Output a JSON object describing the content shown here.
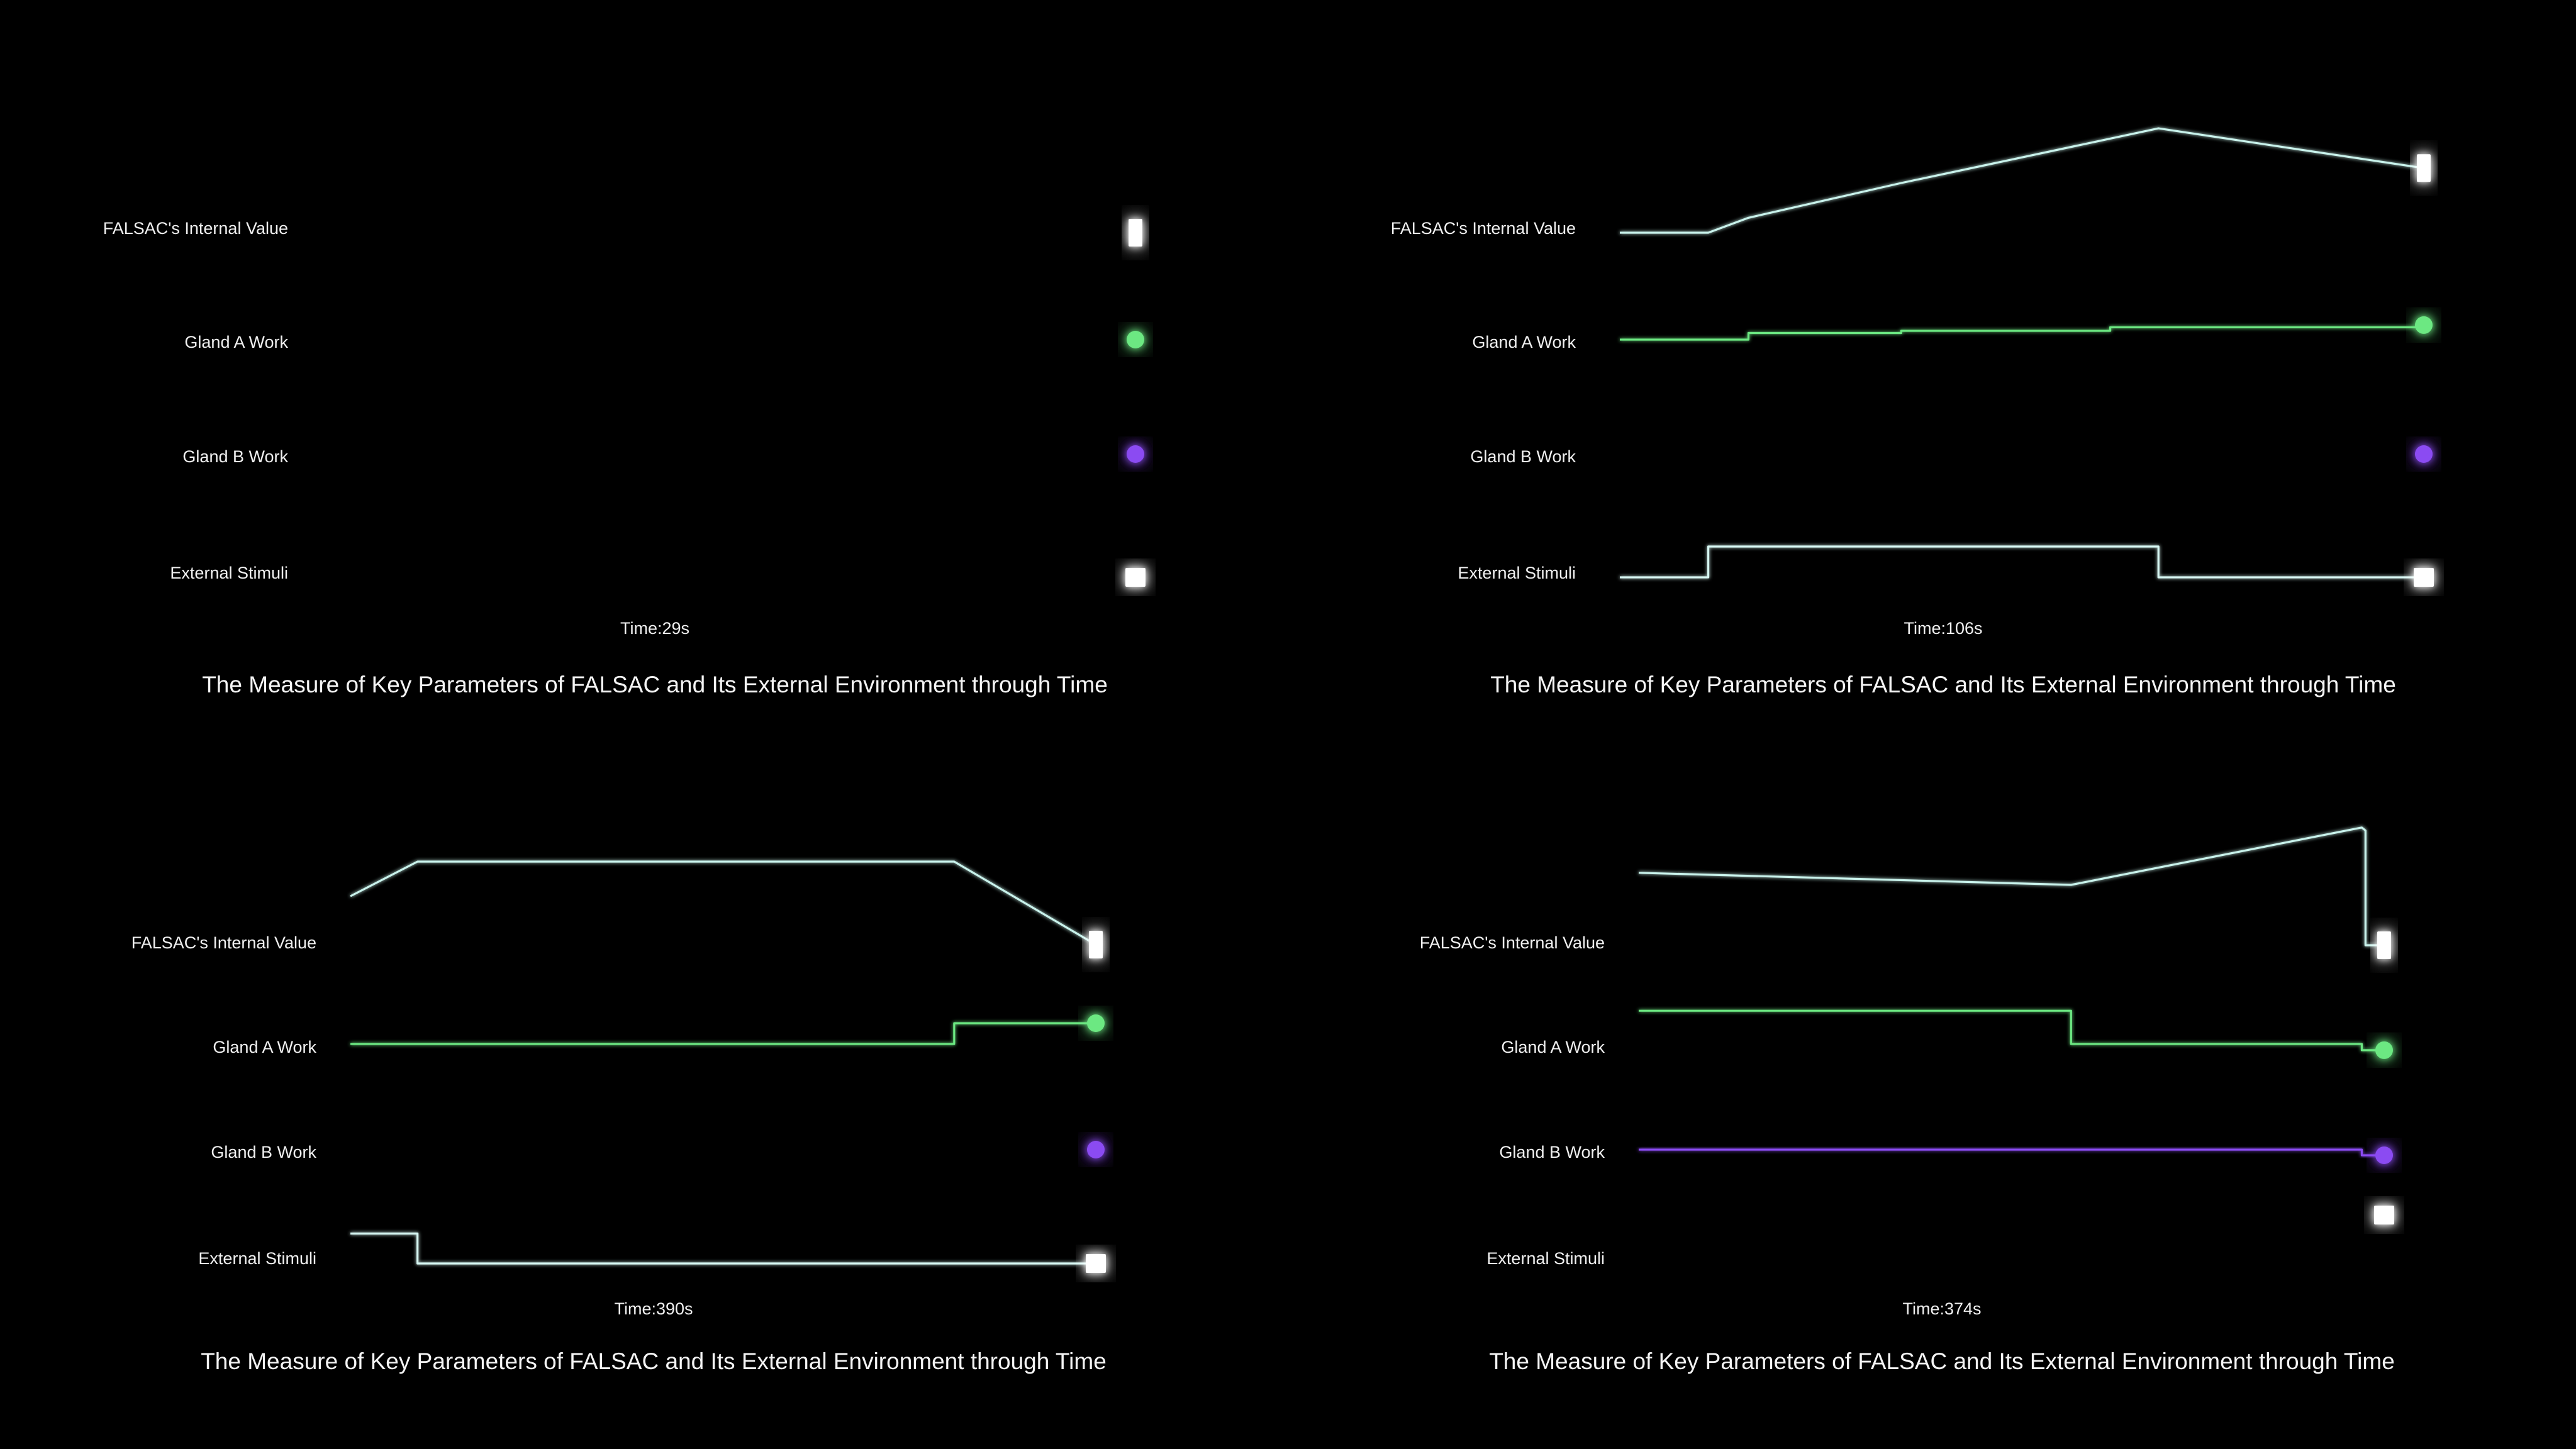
{
  "colors": {
    "background": "#000000",
    "falsac": "#c9f3ec",
    "gland_a": "#6ce882",
    "gland_b": "#8b4cf2",
    "stimuli": "#d6f6f2",
    "text": "#f0f0f0"
  },
  "chart_data": [
    {
      "type": "line",
      "title": "The Measure of Key Parameters of FALSAC and Its External Environment through Time",
      "time_label": "Time:29s",
      "row_labels": [
        "FALSAC's Internal Value",
        "Gland A Work",
        "Gland B Work",
        "External Stimuli"
      ],
      "x": [
        0,
        1
      ],
      "series": [
        {
          "name": "FALSAC's Internal Value",
          "marker": "rect",
          "step": false,
          "x": [
            0,
            1
          ],
          "values": [
            0,
            0
          ]
        },
        {
          "name": "Gland A Work",
          "marker": "circle",
          "step": true,
          "x": [
            0,
            1
          ],
          "values": [
            0,
            0
          ]
        },
        {
          "name": "Gland B Work",
          "marker": "circle",
          "step": true,
          "x": [
            0,
            1
          ],
          "values": [
            0,
            0
          ]
        },
        {
          "name": "External Stimuli",
          "marker": "square",
          "step": true,
          "x": [
            0,
            1
          ],
          "values": [
            0,
            0
          ]
        }
      ]
    },
    {
      "type": "line",
      "title": "The Measure of Key Parameters of FALSAC and Its External Environment through Time",
      "time_label": "Time:106s",
      "row_labels": [
        "FALSAC's Internal Value",
        "Gland A Work",
        "Gland B Work",
        "External Stimuli"
      ],
      "series": [
        {
          "name": "FALSAC's Internal Value",
          "marker": "rect",
          "step": false,
          "x": [
            0,
            0.11,
            0.16,
            0.35,
            0.67,
            1.0
          ],
          "values": [
            0,
            0,
            0.3,
            1.0,
            2.1,
            1.3
          ]
        },
        {
          "name": "Gland A Work",
          "marker": "circle",
          "step": true,
          "x": [
            0,
            0.16,
            0.35,
            0.61,
            1.0
          ],
          "values": [
            0,
            0.15,
            0.2,
            0.28,
            0.33
          ]
        },
        {
          "name": "Gland B Work",
          "marker": "circle",
          "step": true,
          "x": [
            0,
            1.0
          ],
          "values": [
            0,
            0
          ]
        },
        {
          "name": "External Stimuli",
          "marker": "square",
          "step": true,
          "x": [
            0,
            0.11,
            0.67,
            1.0
          ],
          "values": [
            0,
            0.7,
            0,
            0
          ]
        }
      ]
    },
    {
      "type": "line",
      "title": "The Measure of Key Parameters of FALSAC and Its External Environment through Time",
      "time_label": "Time:390s",
      "row_labels": [
        "FALSAC's Internal Value",
        "Gland A Work",
        "Gland B Work",
        "External Stimuli"
      ],
      "series": [
        {
          "name": "FALSAC's Internal Value",
          "marker": "rect",
          "step": false,
          "x": [
            0,
            0.09,
            0.81,
            1.0
          ],
          "values": [
            2.5,
            3.0,
            3.0,
            1.8
          ]
        },
        {
          "name": "Gland A Work",
          "marker": "circle",
          "step": true,
          "x": [
            0,
            0.81,
            1.0
          ],
          "values": [
            0,
            0.5,
            0.5
          ]
        },
        {
          "name": "Gland B Work",
          "marker": "circle",
          "step": true,
          "x": [
            0,
            1.0
          ],
          "values": [
            0,
            0
          ]
        },
        {
          "name": "External Stimuli",
          "marker": "square",
          "step": true,
          "x": [
            0,
            0.09,
            1.0
          ],
          "values": [
            0.7,
            0,
            0
          ]
        }
      ]
    },
    {
      "type": "line",
      "title": "The Measure of Key Parameters of FALSAC and Its External Environment through Time",
      "time_label": "Time:374s",
      "row_labels": [
        "FALSAC's Internal Value",
        "Gland A Work",
        "Gland B Work",
        "External Stimuli"
      ],
      "series": [
        {
          "name": "FALSAC's Internal Value",
          "marker": "rect",
          "step": false,
          "x": [
            0,
            0.58,
            0.97,
            0.975,
            0.975,
            1.0
          ],
          "values": [
            2.4,
            2.0,
            3.9,
            3.8,
            0,
            0
          ]
        },
        {
          "name": "Gland A Work",
          "marker": "circle",
          "step": true,
          "x": [
            0,
            0.58,
            0.97,
            1.0
          ],
          "values": [
            0.8,
            0,
            -0.15,
            -0.15
          ]
        },
        {
          "name": "Gland B Work",
          "marker": "circle",
          "step": true,
          "x": [
            0,
            0.97,
            1.0
          ],
          "values": [
            0,
            -0.15,
            -0.15
          ]
        },
        {
          "name": "External Stimuli",
          "marker": "square",
          "step": true,
          "x": [
            0,
            1.0
          ],
          "values": [
            0.5,
            0.5
          ]
        }
      ]
    }
  ]
}
